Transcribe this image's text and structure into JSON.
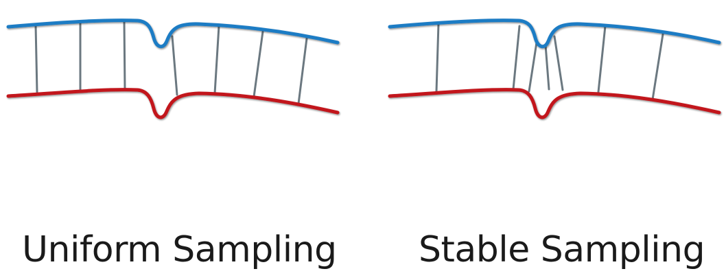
{
  "panels": [
    {
      "id": "uniform",
      "caption": "Uniform Sampling",
      "top_curve_color": "#1f7bc4",
      "bottom_curve_color": "#c2131a",
      "connector_color": "#6b7880",
      "connector_count": 7
    },
    {
      "id": "stable",
      "caption": "Stable Sampling",
      "top_curve_color": "#1f7bc4",
      "bottom_curve_color": "#c2131a",
      "connector_color": "#6b7880",
      "connector_count": 7
    }
  ]
}
